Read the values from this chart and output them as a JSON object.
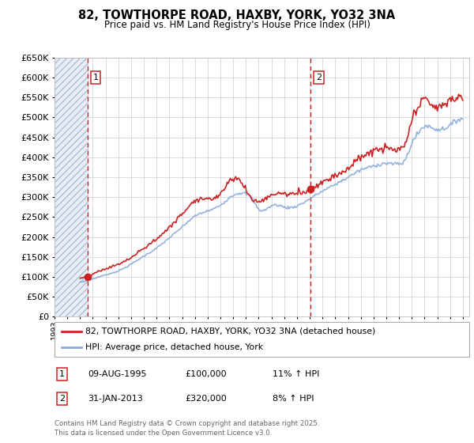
{
  "title": "82, TOWTHORPE ROAD, HAXBY, YORK, YO32 3NA",
  "subtitle": "Price paid vs. HM Land Registry's House Price Index (HPI)",
  "legend_line1": "82, TOWTHORPE ROAD, HAXBY, YORK, YO32 3NA (detached house)",
  "legend_line2": "HPI: Average price, detached house, York",
  "footer": "Contains HM Land Registry data © Crown copyright and database right 2025.\nThis data is licensed under the Open Government Licence v3.0.",
  "sale1_date": "09-AUG-1995",
  "sale1_price": "£100,000",
  "sale1_hpi": "11% ↑ HPI",
  "sale1_year": 1995.61,
  "sale1_value": 100000,
  "sale2_date": "31-JAN-2013",
  "sale2_price": "£320,000",
  "sale2_hpi": "8% ↑ HPI",
  "sale2_year": 2013.08,
  "sale2_value": 320000,
  "ylim": [
    0,
    650000
  ],
  "ytick_step": 50000,
  "xmin": 1993.0,
  "xmax": 2025.5,
  "red_line_color": "#cc2222",
  "blue_line_color": "#88aadd",
  "vline_color": "#cc2222",
  "plot_bg": "#ffffff"
}
